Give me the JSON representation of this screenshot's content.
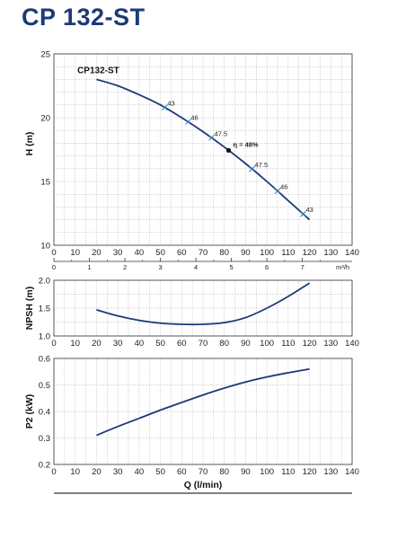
{
  "title": "CP 132-ST",
  "chart_data": [
    {
      "type": "line",
      "name": "head",
      "curve_label": "CP132-ST",
      "ylabel": "H (m)",
      "xlim": [
        0,
        140
      ],
      "ylim": [
        10,
        25
      ],
      "xticks": [
        0,
        10,
        20,
        30,
        40,
        50,
        60,
        70,
        80,
        90,
        100,
        110,
        120,
        130,
        140
      ],
      "yticks": [
        10,
        15,
        20,
        25
      ],
      "grid": true,
      "x": [
        20,
        30,
        40,
        50,
        60,
        70,
        80,
        90,
        100,
        110,
        120
      ],
      "y": [
        23.0,
        22.5,
        21.8,
        21.0,
        20.0,
        18.9,
        17.7,
        16.4,
        15.0,
        13.5,
        12.0
      ],
      "secondary_axis": {
        "label": "m³/h",
        "ticks": [
          "0",
          "1",
          "2",
          "3",
          "4",
          "5",
          "6",
          "7"
        ]
      },
      "efficiency_marks": [
        {
          "x": 52,
          "label": "43"
        },
        {
          "x": 63,
          "label": "46"
        },
        {
          "x": 74,
          "label": "47.5"
        },
        {
          "x": 93,
          "label": "47.5"
        },
        {
          "x": 105,
          "label": "46"
        },
        {
          "x": 117,
          "label": "43"
        }
      ],
      "best_efficiency": {
        "x": 82,
        "label": "η = 48%"
      }
    },
    {
      "type": "line",
      "name": "npsh",
      "ylabel": "NPSH (m)",
      "xlim": [
        0,
        140
      ],
      "ylim": [
        1,
        2
      ],
      "xticks": [
        0,
        10,
        20,
        30,
        40,
        50,
        60,
        70,
        80,
        90,
        100,
        110,
        120,
        130,
        140
      ],
      "yticks": [
        1,
        1.5,
        2
      ],
      "grid": true,
      "x": [
        20,
        30,
        40,
        50,
        60,
        70,
        80,
        90,
        100,
        110,
        120
      ],
      "y": [
        1.47,
        1.36,
        1.28,
        1.23,
        1.21,
        1.21,
        1.24,
        1.33,
        1.5,
        1.71,
        1.95
      ]
    },
    {
      "type": "line",
      "name": "power",
      "ylabel": "P2 (kW)",
      "xlabel": "Q (l/min)",
      "xlim": [
        0,
        140
      ],
      "ylim": [
        0.2,
        0.6
      ],
      "xticks": [
        0,
        10,
        20,
        30,
        40,
        50,
        60,
        70,
        80,
        90,
        100,
        110,
        120,
        130,
        140
      ],
      "yticks": [
        0.2,
        0.3,
        0.4,
        0.5,
        0.6
      ],
      "grid": true,
      "x": [
        20,
        30,
        40,
        50,
        60,
        70,
        80,
        90,
        100,
        110,
        120
      ],
      "y": [
        0.31,
        0.343,
        0.374,
        0.405,
        0.434,
        0.462,
        0.488,
        0.511,
        0.53,
        0.546,
        0.56
      ]
    }
  ],
  "colors": {
    "title": "#1b3a78",
    "curve": "#1b3a78",
    "grid": "#9a9a9a",
    "marker": "#2f7fb8"
  }
}
